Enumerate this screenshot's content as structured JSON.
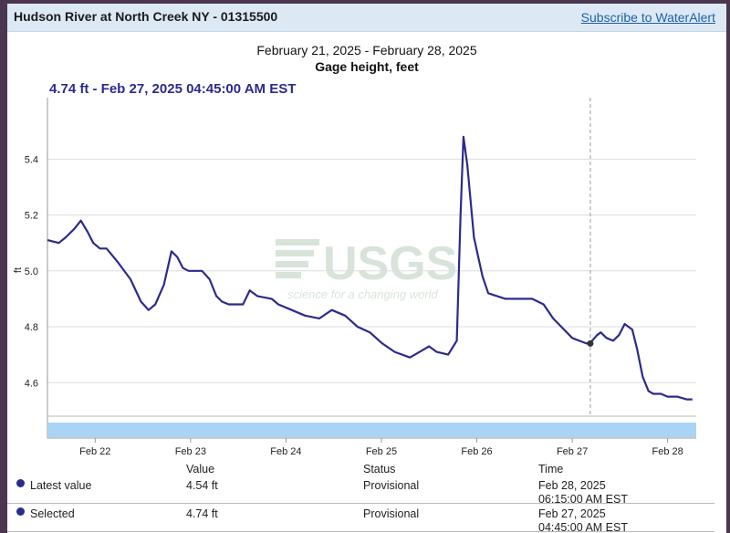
{
  "header": {
    "site_title": "Hudson River at North Creek NY - 01315500",
    "subscribe_label": "Subscribe to WaterAlert"
  },
  "tooltip": {
    "readout": "4.74 ft - Feb 27, 2025 04:45:00 AM EST"
  },
  "watermark": {
    "logo": "USGS",
    "tagline": "science for a changing world"
  },
  "colors": {
    "series": "#2b2b8c",
    "brush": "#a9d4f5",
    "grid": "#dddddd"
  },
  "chart_data": {
    "type": "line",
    "title": "February 21, 2025 - February 28, 2025",
    "subtitle": "Gage height, feet",
    "ylabel": "ft",
    "xlabel": "",
    "ylim": [
      4.48,
      5.62
    ],
    "xlim": [
      21.5,
      28.3
    ],
    "y_ticks": [
      4.6,
      4.8,
      5.0,
      5.2,
      5.4
    ],
    "y_tick_labels": [
      "4.6",
      "4.8",
      "5.0",
      "5.2",
      "5.4"
    ],
    "x_ticks": [
      22,
      23,
      24,
      25,
      26,
      27,
      28
    ],
    "x_tick_labels": [
      "Feb 22",
      "Feb 23",
      "Feb 24",
      "Feb 25",
      "Feb 26",
      "Feb 27",
      "Feb 28"
    ],
    "grid": true,
    "series": [
      {
        "name": "Gage height",
        "x": [
          21.5,
          21.62,
          21.69,
          21.78,
          21.85,
          21.92,
          21.98,
          22.05,
          22.12,
          22.24,
          22.37,
          22.48,
          22.56,
          22.63,
          22.72,
          22.8,
          22.86,
          22.92,
          22.98,
          23.04,
          23.12,
          23.2,
          23.27,
          23.33,
          23.4,
          23.47,
          23.55,
          23.62,
          23.7,
          23.85,
          23.92,
          24.06,
          24.2,
          24.35,
          24.48,
          24.62,
          24.75,
          24.88,
          25.01,
          25.14,
          25.3,
          25.5,
          25.58,
          25.7,
          25.79,
          25.83,
          25.86,
          25.9,
          25.97,
          26.06,
          26.12,
          26.3,
          26.45,
          26.58,
          26.7,
          26.8,
          27.0,
          27.15,
          27.21,
          27.26,
          27.3,
          27.36,
          27.43,
          27.49,
          27.55,
          27.63,
          27.68,
          27.74,
          27.8,
          27.85,
          27.93,
          28.0,
          28.1,
          28.2,
          28.26
        ],
        "values": [
          5.11,
          5.1,
          5.12,
          5.15,
          5.18,
          5.14,
          5.1,
          5.08,
          5.08,
          5.03,
          4.97,
          4.89,
          4.86,
          4.88,
          4.95,
          5.07,
          5.05,
          5.01,
          5.0,
          5.0,
          5.0,
          4.97,
          4.91,
          4.89,
          4.88,
          4.88,
          4.88,
          4.93,
          4.91,
          4.9,
          4.88,
          4.86,
          4.84,
          4.83,
          4.86,
          4.84,
          4.8,
          4.78,
          4.74,
          4.71,
          4.69,
          4.73,
          4.71,
          4.7,
          4.75,
          5.2,
          5.48,
          5.38,
          5.12,
          4.98,
          4.92,
          4.9,
          4.9,
          4.9,
          4.88,
          4.83,
          4.76,
          4.74,
          4.75,
          4.77,
          4.78,
          4.76,
          4.75,
          4.77,
          4.81,
          4.79,
          4.72,
          4.62,
          4.57,
          4.56,
          4.56,
          4.55,
          4.55,
          4.54,
          4.54
        ]
      }
    ],
    "selected_point": {
      "x": 27.19,
      "value": 4.74
    }
  },
  "table": {
    "headers": {
      "value": "Value",
      "status": "Status",
      "time": "Time"
    },
    "rows": [
      {
        "label": "Latest value",
        "value": "4.54 ft",
        "status": "Provisional",
        "date": "Feb 28, 2025",
        "time": "06:15:00 AM EST"
      },
      {
        "label": "Selected",
        "value": "4.74 ft",
        "status": "Provisional",
        "date": "Feb 27, 2025",
        "time": "04:45:00 AM EST"
      }
    ]
  }
}
